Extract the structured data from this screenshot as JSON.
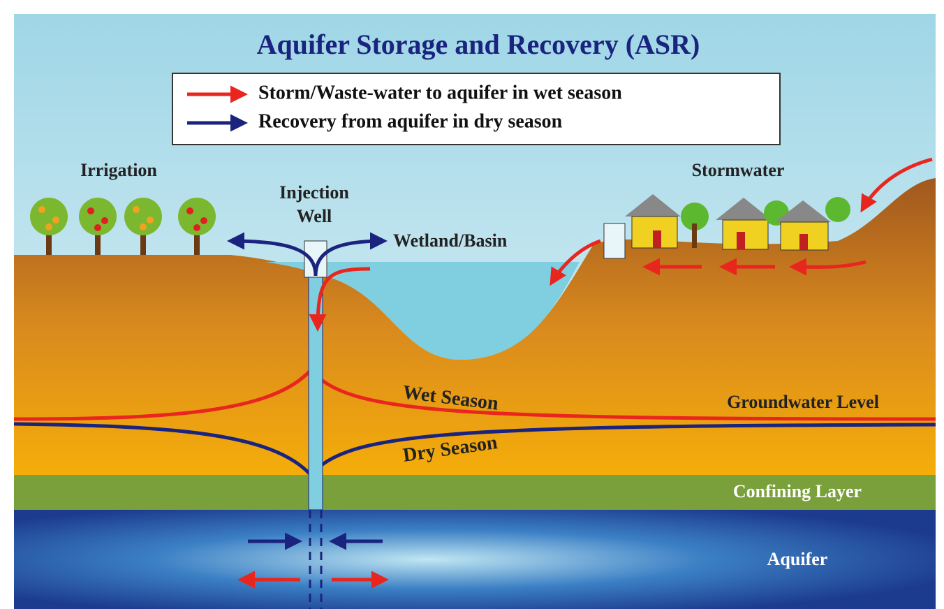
{
  "header": {
    "title": "Aquifer Storage and Recovery (ASR)"
  },
  "legend": {
    "items": [
      {
        "label": "Storm/Waste-water to aquifer in wet season",
        "color": "red"
      },
      {
        "label": "Recovery from aquifer in dry season",
        "color": "navy"
      }
    ]
  },
  "labels": {
    "irrigation": "Irrigation",
    "injection_well": [
      "Injection",
      "Well"
    ],
    "wetland_basin": "Wetland/Basin",
    "stormwater": "Stormwater",
    "wet_season": "Wet Season",
    "groundwater_level": "Groundwater Level",
    "dry_season": "Dry Season",
    "confining_layer": "Confining Layer",
    "aquifer": "Aquifer"
  }
}
